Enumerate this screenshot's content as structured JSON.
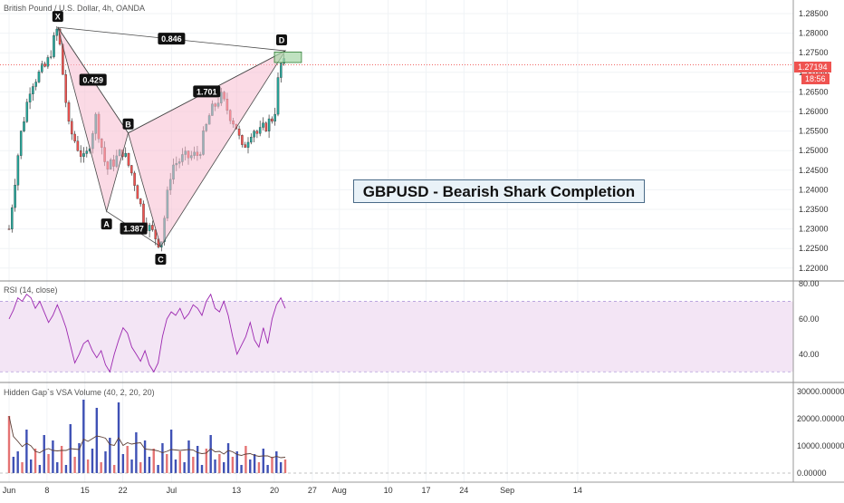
{
  "header": {
    "symbol_title": "British Pound / U.S. Dollar, 4h, OANDA"
  },
  "annotation_box": {
    "title": "GBPUSD - Bearish Shark Completion"
  },
  "price_badges": {
    "last_price": "1.27194",
    "countdown": "18:56"
  },
  "colors": {
    "candle_up": "#26a69a",
    "candle_down": "#ef5350",
    "pattern_fill": "#f8bbd0",
    "pattern_stroke": "#4a4a4a",
    "target_zone": "#a5d6a7",
    "rsi_line": "#9c27b0",
    "rsi_band": "#f3e5f5",
    "vol_blue": "#3f51b5",
    "vol_red": "#e57373",
    "vol_ma": "#5d4037"
  },
  "chart_data": [
    {
      "type": "candlestick",
      "title": "British Pound / U.S. Dollar, 4h, OANDA",
      "x_ticks": [
        "Jun",
        "8",
        "15",
        "22",
        "Jul",
        "13",
        "20",
        "27",
        "Aug",
        "10",
        "17",
        "24",
        "Sep",
        "14"
      ],
      "y_ticks": [
        "1.28500",
        "1.28000",
        "1.27500",
        "1.27000",
        "1.26500",
        "1.26000",
        "1.25500",
        "1.25000",
        "1.24500",
        "1.24000",
        "1.23500",
        "1.23000",
        "1.22500",
        "1.22000"
      ],
      "ylim": [
        1.22,
        1.2875
      ],
      "price_path": [
        [
          "2020-06-01",
          1.23
        ],
        [
          "2020-06-03",
          1.253
        ],
        [
          "2020-06-05",
          1.267
        ],
        [
          "2020-06-08",
          1.272
        ],
        [
          "2020-06-10",
          1.2815
        ],
        [
          "2020-06-12",
          1.256
        ],
        [
          "2020-06-15",
          1.247
        ],
        [
          "2020-06-17",
          1.2585
        ],
        [
          "2020-06-19",
          1.245
        ],
        [
          "2020-06-22",
          1.25
        ],
        [
          "2020-06-24",
          1.243
        ],
        [
          "2020-06-26",
          1.232
        ],
        [
          "2020-06-29",
          1.226
        ],
        [
          "2020-07-01",
          1.246
        ],
        [
          "2020-07-03",
          1.248
        ],
        [
          "2020-07-06",
          1.249
        ],
        [
          "2020-07-08",
          1.259
        ],
        [
          "2020-07-10",
          1.264
        ],
        [
          "2020-07-13",
          1.256
        ],
        [
          "2020-07-14",
          1.25
        ],
        [
          "2020-07-16",
          1.256
        ],
        [
          "2020-07-17",
          1.254
        ],
        [
          "2020-07-20",
          1.259
        ],
        [
          "2020-07-21",
          1.272
        ],
        [
          "2020-07-22",
          1.2719
        ]
      ],
      "harmonic_pattern": {
        "name": "Bearish Shark",
        "points": [
          {
            "label": "X",
            "date": "2020-06-10",
            "price": 1.2815
          },
          {
            "label": "A",
            "date": "2020-06-19",
            "price": 1.2345
          },
          {
            "label": "B",
            "date": "2020-06-23",
            "price": 1.2545
          },
          {
            "label": "C",
            "date": "2020-06-29",
            "price": 1.2255
          },
          {
            "label": "D",
            "date": "2020-07-22",
            "price": 1.2755
          }
        ],
        "ratios": [
          {
            "value": "0.846",
            "between": "X-D"
          },
          {
            "value": "0.429",
            "between": "X-B"
          },
          {
            "value": "1.387",
            "between": "A-C"
          },
          {
            "value": "1.701",
            "between": "B-D"
          }
        ],
        "target_zone": {
          "price_low": 1.2725,
          "price_high": 1.2752
        }
      },
      "last_price_line": 1.27194
    },
    {
      "type": "line",
      "title": "RSI (14, close)",
      "y_ticks": [
        "80.00",
        "60.00",
        "40.00"
      ],
      "ylim": [
        25,
        80
      ],
      "band": [
        30,
        70
      ],
      "series": [
        {
          "values": [
            60,
            65,
            72,
            70,
            74,
            72,
            66,
            70,
            64,
            58,
            62,
            68,
            62,
            55,
            45,
            35,
            40,
            46,
            48,
            42,
            38,
            42,
            34,
            30,
            40,
            48,
            55,
            52,
            44,
            40,
            36,
            42,
            34,
            30,
            35,
            50,
            60,
            64,
            62,
            66,
            60,
            63,
            68,
            66,
            62,
            70,
            74,
            66,
            64,
            70,
            62,
            50,
            40,
            45,
            50,
            58,
            48,
            44,
            55,
            46,
            60,
            68,
            72,
            66
          ]
        }
      ]
    },
    {
      "type": "bar",
      "title": "Hidden Gap`s VSA Volume (40, 2, 20, 20)",
      "y_ticks": [
        "30000.00000",
        "20000.00000",
        "10000.00000",
        "0.00000"
      ],
      "ylim": [
        0,
        32000
      ],
      "series": [
        {
          "values": [
            21000,
            6000,
            8000,
            4000,
            16000,
            5000,
            9000,
            3000,
            14000,
            7000,
            12000,
            4000,
            10000,
            3000,
            18000,
            6000,
            11000,
            27000,
            5000,
            9000,
            24000,
            4000,
            8000,
            13000,
            3000,
            26000,
            7000,
            10000,
            5000,
            15000,
            4000,
            12000,
            6000,
            9000,
            3000,
            11000,
            7000,
            16000,
            5000,
            8000,
            4000,
            12000,
            6000,
            10000,
            3000,
            9000,
            14000,
            5000,
            7000,
            4000,
            11000,
            6000,
            8000,
            3000,
            10000,
            5000,
            7000,
            4000,
            9000,
            3000,
            6000,
            8000,
            4000,
            5000
          ]
        }
      ]
    }
  ]
}
